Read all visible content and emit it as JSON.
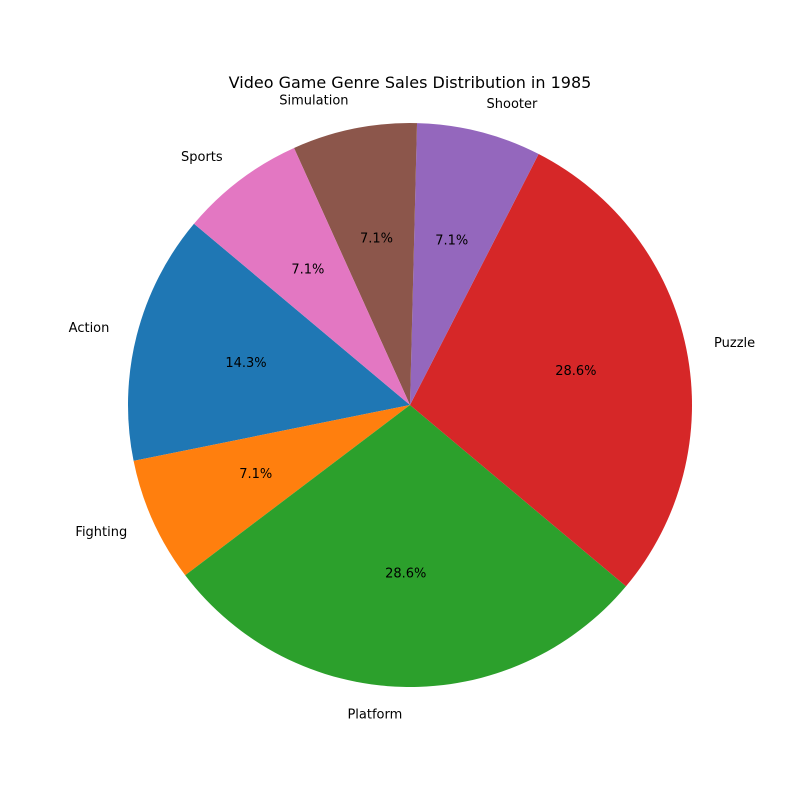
{
  "chart_data": {
    "type": "pie",
    "title": "Video Game Genre Sales Distribution in 1985",
    "categories": [
      "Action",
      "Fighting",
      "Platform",
      "Puzzle",
      "Shooter",
      "Simulation",
      "Sports"
    ],
    "values": [
      2,
      1,
      4,
      4,
      1,
      1,
      1
    ],
    "percent_labels": [
      "14.3%",
      "7.1%",
      "28.6%",
      "28.6%",
      "7.1%",
      "7.1%",
      "7.1%"
    ],
    "colors": [
      "#1f77b4",
      "#ff7f0e",
      "#2ca02c",
      "#d62728",
      "#9467bd",
      "#8c564b",
      "#e377c2"
    ],
    "start_angle_deg": 140,
    "direction": "counterclockwise",
    "legend": "none"
  }
}
